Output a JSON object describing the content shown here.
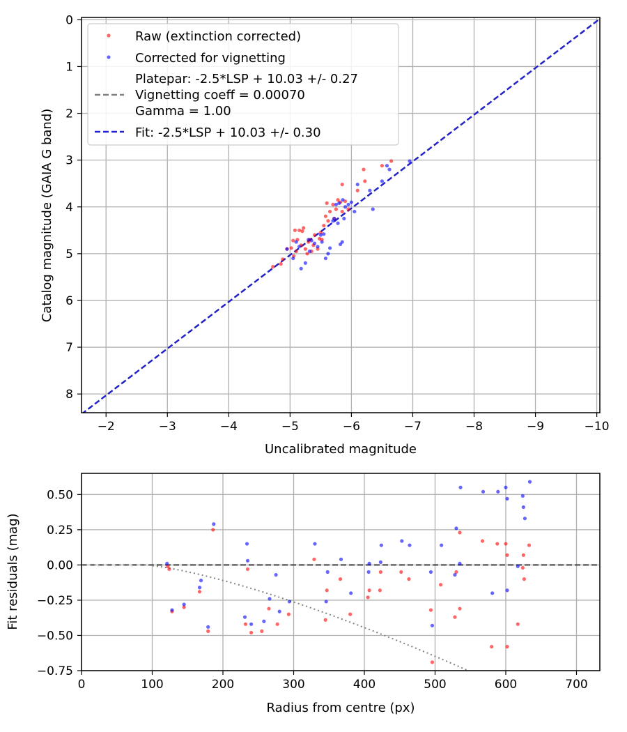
{
  "chart_data": [
    {
      "type": "scatter",
      "xlabel": "Uncalibrated magnitude",
      "ylabel": "Catalog magnitude (GAIA G band)",
      "xlim": [
        -1.6,
        -10.05
      ],
      "ylim": [
        8.4,
        -0.05
      ],
      "x_ticks": [
        -2,
        -3,
        -4,
        -5,
        -6,
        -7,
        -8,
        -9,
        -10
      ],
      "x_tick_labels": [
        "−2",
        "−3",
        "−4",
        "−5",
        "−6",
        "−7",
        "−8",
        "−9",
        "−10"
      ],
      "y_ticks": [
        0,
        1,
        2,
        3,
        4,
        5,
        6,
        7,
        8
      ],
      "y_tick_labels": [
        "0",
        "1",
        "2",
        "3",
        "4",
        "5",
        "6",
        "7",
        "8"
      ],
      "grid": true,
      "legend_position": "top-left",
      "series": [
        {
          "name": "Raw (extinction corrected)",
          "color": "#ff0000",
          "points": [
            [
              -4.72,
              5.28
            ],
            [
              -4.85,
              5.22
            ],
            [
              -4.88,
              5.12
            ],
            [
              -4.95,
              4.9
            ],
            [
              -5.02,
              4.88
            ],
            [
              -5.05,
              4.72
            ],
            [
              -5.06,
              5.05
            ],
            [
              -5.08,
              4.5
            ],
            [
              -5.1,
              4.95
            ],
            [
              -5.12,
              4.7
            ],
            [
              -5.15,
              4.5
            ],
            [
              -5.18,
              4.82
            ],
            [
              -5.2,
              4.52
            ],
            [
              -5.22,
              4.45
            ],
            [
              -5.25,
              4.9
            ],
            [
              -5.28,
              5.0
            ],
            [
              -5.3,
              4.75
            ],
            [
              -5.32,
              4.7
            ],
            [
              -5.35,
              4.95
            ],
            [
              -5.38,
              4.82
            ],
            [
              -5.4,
              4.6
            ],
            [
              -5.45,
              4.9
            ],
            [
              -5.48,
              4.68
            ],
            [
              -5.5,
              4.55
            ],
            [
              -5.52,
              4.7
            ],
            [
              -5.55,
              4.4
            ],
            [
              -5.58,
              4.2
            ],
            [
              -5.6,
              3.92
            ],
            [
              -5.62,
              4.3
            ],
            [
              -5.65,
              4.1
            ],
            [
              -5.7,
              3.95
            ],
            [
              -5.72,
              4.25
            ],
            [
              -5.75,
              4.05
            ],
            [
              -5.78,
              3.85
            ],
            [
              -5.82,
              3.9
            ],
            [
              -5.85,
              4.1
            ],
            [
              -5.85,
              3.52
            ],
            [
              -5.9,
              3.88
            ],
            [
              -5.95,
              4.05
            ],
            [
              -6.1,
              3.65
            ],
            [
              -6.2,
              3.2
            ],
            [
              -6.22,
              3.45
            ],
            [
              -6.5,
              3.12
            ],
            [
              -6.65,
              3.02
            ]
          ]
        },
        {
          "name": "Corrected for vignetting",
          "color": "#0000ff",
          "points": [
            [
              -4.95,
              4.9
            ],
            [
              -5.05,
              5.1
            ],
            [
              -5.1,
              4.75
            ],
            [
              -5.15,
              4.85
            ],
            [
              -5.18,
              5.32
            ],
            [
              -5.25,
              5.2
            ],
            [
              -5.3,
              4.7
            ],
            [
              -5.32,
              4.95
            ],
            [
              -5.35,
              4.72
            ],
            [
              -5.4,
              4.78
            ],
            [
              -5.45,
              4.85
            ],
            [
              -5.5,
              4.6
            ],
            [
              -5.52,
              4.75
            ],
            [
              -5.55,
              4.58
            ],
            [
              -5.58,
              5.1
            ],
            [
              -5.62,
              5.0
            ],
            [
              -5.65,
              4.88
            ],
            [
              -5.7,
              4.3
            ],
            [
              -5.72,
              4.25
            ],
            [
              -5.75,
              3.95
            ],
            [
              -5.78,
              4.35
            ],
            [
              -5.8,
              3.92
            ],
            [
              -5.82,
              4.8
            ],
            [
              -5.85,
              4.75
            ],
            [
              -5.86,
              3.85
            ],
            [
              -5.88,
              4.25
            ],
            [
              -5.9,
              4.0
            ],
            [
              -5.95,
              3.95
            ],
            [
              -6.0,
              3.9
            ],
            [
              -6.05,
              4.1
            ],
            [
              -6.1,
              3.52
            ],
            [
              -6.3,
              3.65
            ],
            [
              -6.35,
              4.05
            ],
            [
              -6.5,
              3.45
            ],
            [
              -6.58,
              3.12
            ],
            [
              -6.62,
              3.2
            ],
            [
              -6.95,
              3.02
            ]
          ]
        }
      ],
      "lines": [
        {
          "name": "Platepar: -2.5*LSP + 10.03 +/- 0.27",
          "name_line2": "Vignetting coeff = 0.00070",
          "name_line3": "Gamma = 1.00",
          "style": "dashed",
          "color": "#808080",
          "slope": 1,
          "intercept": 10.03
        },
        {
          "name": "Fit: -2.5*LSP + 10.03 +/- 0.30",
          "style": "dashed",
          "color": "#2222cc",
          "slope": 1,
          "intercept": 10.03
        }
      ]
    },
    {
      "type": "scatter",
      "xlabel": "Radius from centre (px)",
      "ylabel": "Fit residuals (mag)",
      "xlim": [
        0,
        733
      ],
      "ylim": [
        -0.75,
        0.65
      ],
      "x_ticks": [
        0,
        100,
        200,
        300,
        400,
        500,
        600,
        700
      ],
      "x_tick_labels": [
        "0",
        "100",
        "200",
        "300",
        "400",
        "500",
        "600",
        "700"
      ],
      "y_ticks": [
        0.5,
        0.25,
        0.0,
        -0.25,
        -0.5,
        -0.75
      ],
      "y_tick_labels": [
        "0.50",
        "0.25",
        "0.00",
        "−0.25",
        "−0.50",
        "−0.75"
      ],
      "grid": true,
      "series": [
        {
          "name": "Raw (extinction corrected)",
          "color": "#ff0000",
          "points": [
            [
              122,
              -0.01
            ],
            [
              124,
              -0.03
            ],
            [
              128,
              -0.33
            ],
            [
              145,
              -0.3
            ],
            [
              167,
              -0.19
            ],
            [
              179,
              -0.47
            ],
            [
              186,
              0.25
            ],
            [
              232,
              -0.42
            ],
            [
              235,
              -0.03
            ],
            [
              240,
              -0.48
            ],
            [
              255,
              -0.47
            ],
            [
              265,
              -0.31
            ],
            [
              277,
              -0.42
            ],
            [
              293,
              -0.35
            ],
            [
              329,
              0.04
            ],
            [
              345,
              -0.39
            ],
            [
              347,
              -0.18
            ],
            [
              366,
              -0.1
            ],
            [
              380,
              -0.35
            ],
            [
              405,
              -0.23
            ],
            [
              407,
              -0.18
            ],
            [
              422,
              -0.18
            ],
            [
              423,
              -0.05
            ],
            [
              452,
              -0.05
            ],
            [
              463,
              -0.1
            ],
            [
              494,
              -0.32
            ],
            [
              496,
              -0.69
            ],
            [
              508,
              -0.14
            ],
            [
              528,
              -0.37
            ],
            [
              530,
              -0.05
            ],
            [
              535,
              0.23
            ],
            [
              535,
              -0.31
            ],
            [
              567,
              0.17
            ],
            [
              580,
              -0.58
            ],
            [
              588,
              0.15
            ],
            [
              600,
              0.15
            ],
            [
              602,
              0.07
            ],
            [
              602,
              -0.58
            ],
            [
              617,
              -0.42
            ],
            [
              624,
              -0.02
            ],
            [
              625,
              0.07
            ],
            [
              626,
              -0.1
            ],
            [
              633,
              0.14
            ]
          ]
        },
        {
          "name": "Corrected for vignetting",
          "color": "#0000ff",
          "points": [
            [
              121,
              0.01
            ],
            [
              128,
              -0.32
            ],
            [
              145,
              -0.28
            ],
            [
              167,
              -0.16
            ],
            [
              169,
              -0.11
            ],
            [
              179,
              -0.44
            ],
            [
              187,
              0.29
            ],
            [
              231,
              -0.37
            ],
            [
              234,
              0.15
            ],
            [
              235,
              0.03
            ],
            [
              240,
              -0.42
            ],
            [
              258,
              -0.4
            ],
            [
              266,
              -0.24
            ],
            [
              275,
              -0.07
            ],
            [
              280,
              -0.33
            ],
            [
              294,
              -0.26
            ],
            [
              330,
              0.15
            ],
            [
              346,
              -0.26
            ],
            [
              348,
              -0.05
            ],
            [
              367,
              0.04
            ],
            [
              381,
              -0.2
            ],
            [
              406,
              -0.05
            ],
            [
              407,
              0.01
            ],
            [
              423,
              0.02
            ],
            [
              424,
              0.14
            ],
            [
              453,
              0.17
            ],
            [
              464,
              0.14
            ],
            [
              494,
              -0.05
            ],
            [
              496,
              -0.43
            ],
            [
              509,
              0.14
            ],
            [
              528,
              -0.07
            ],
            [
              530,
              0.26
            ],
            [
              535,
              0.01
            ],
            [
              536,
              0.55
            ],
            [
              568,
              0.52
            ],
            [
              581,
              -0.2
            ],
            [
              589,
              0.52
            ],
            [
              600,
              0.55
            ],
            [
              602,
              0.47
            ],
            [
              602,
              -0.18
            ],
            [
              617,
              -0.01
            ],
            [
              624,
              0.49
            ],
            [
              625,
              0.41
            ],
            [
              627,
              0.33
            ],
            [
              634,
              0.59
            ]
          ]
        }
      ],
      "lines": [
        {
          "name": "zero",
          "style": "dashed",
          "color": "#555555",
          "value": 0
        },
        {
          "name": "vignetting-curve",
          "style": "dotted",
          "color": "#808080",
          "coeff": 0.0007
        }
      ]
    }
  ]
}
